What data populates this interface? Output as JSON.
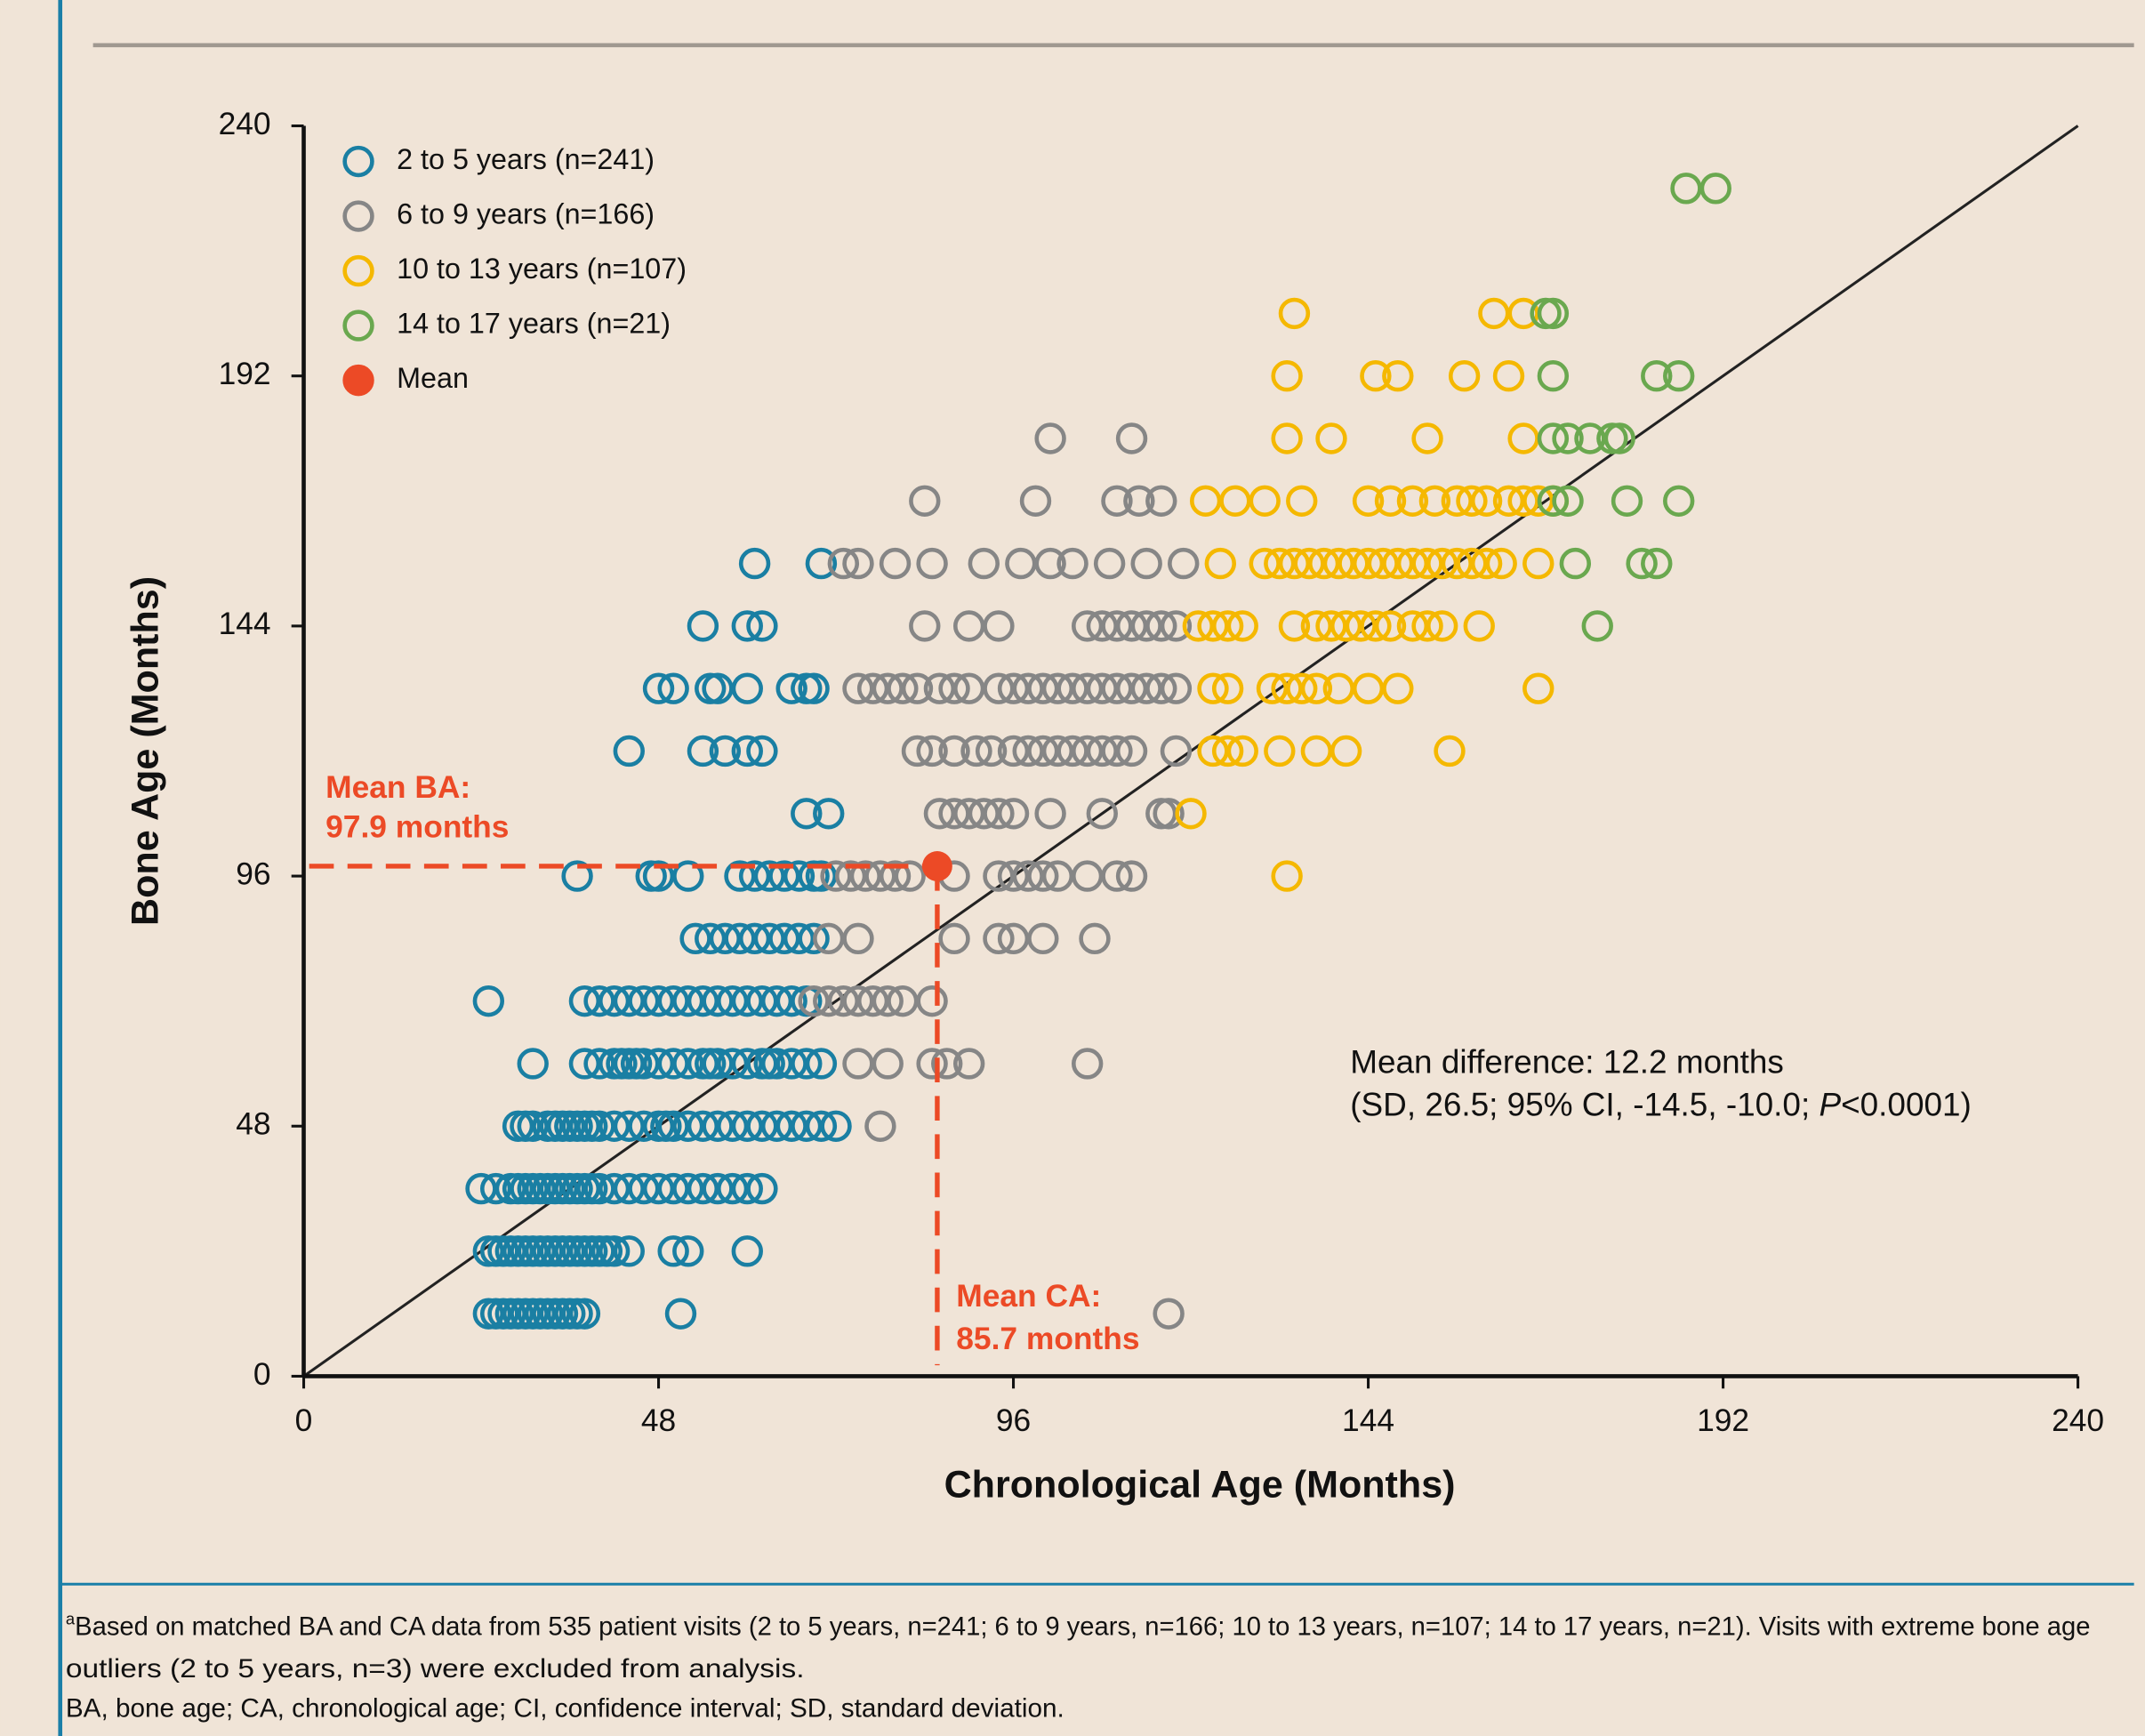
{
  "chart_data": {
    "type": "scatter",
    "xlabel": "Chronological Age (Months)",
    "ylabel": "Bone Age (Months)",
    "xlim": [
      0,
      240
    ],
    "ylim": [
      0,
      240
    ],
    "xticks": [
      0,
      48,
      96,
      144,
      192,
      240
    ],
    "yticks": [
      0,
      48,
      96,
      144,
      192,
      240
    ],
    "legend": "upper left",
    "series": [
      {
        "name": "2 to 5 years (n=241)",
        "color": "#1a7fa3",
        "x": [
          25,
          26,
          27,
          28,
          29,
          30,
          31,
          32,
          33,
          34,
          35,
          36,
          37,
          38,
          51,
          25,
          26,
          27,
          28,
          29,
          30,
          31,
          32,
          33,
          34,
          35,
          36,
          37,
          38,
          39,
          40,
          41,
          42,
          44,
          50,
          52,
          60,
          24,
          26,
          28,
          29,
          30,
          31,
          32,
          33,
          34,
          35,
          36,
          37,
          38,
          39,
          40,
          42,
          44,
          46,
          48,
          50,
          52,
          54,
          56,
          58,
          60,
          62,
          29,
          30,
          31,
          33,
          34,
          35,
          36,
          37,
          38,
          39,
          40,
          42,
          44,
          46,
          48,
          49,
          50,
          52,
          54,
          56,
          58,
          60,
          62,
          64,
          66,
          68,
          70,
          72,
          31,
          38,
          40,
          42,
          43,
          44,
          45,
          46,
          48,
          50,
          52,
          54,
          55,
          56,
          58,
          60,
          62,
          63,
          64,
          66,
          68,
          70,
          25,
          38,
          40,
          42,
          44,
          46,
          48,
          50,
          52,
          54,
          56,
          58,
          60,
          62,
          64,
          66,
          68,
          53,
          55,
          57,
          59,
          61,
          63,
          65,
          67,
          69,
          37,
          47,
          48,
          52,
          59,
          61,
          63,
          65,
          67,
          69,
          70,
          68,
          71,
          44,
          54,
          57,
          60,
          62,
          48,
          50,
          55,
          56,
          60,
          66,
          68,
          69,
          54,
          60,
          62,
          61,
          70
        ],
        "y": [
          12,
          12,
          12,
          12,
          12,
          12,
          12,
          12,
          12,
          12,
          12,
          12,
          12,
          12,
          12,
          24,
          24,
          24,
          24,
          24,
          24,
          24,
          24,
          24,
          24,
          24,
          24,
          24,
          24,
          24,
          24,
          24,
          24,
          24,
          24,
          24,
          24,
          36,
          36,
          36,
          36,
          36,
          36,
          36,
          36,
          36,
          36,
          36,
          36,
          36,
          36,
          36,
          36,
          36,
          36,
          36,
          36,
          36,
          36,
          36,
          36,
          36,
          36,
          48,
          48,
          48,
          48,
          48,
          48,
          48,
          48,
          48,
          48,
          48,
          48,
          48,
          48,
          48,
          48,
          48,
          48,
          48,
          48,
          48,
          48,
          48,
          48,
          48,
          48,
          48,
          48,
          60,
          60,
          60,
          60,
          60,
          60,
          60,
          60,
          60,
          60,
          60,
          60,
          60,
          60,
          60,
          60,
          60,
          60,
          60,
          60,
          60,
          60,
          72,
          72,
          72,
          72,
          72,
          72,
          72,
          72,
          72,
          72,
          72,
          72,
          72,
          72,
          72,
          72,
          72,
          84,
          84,
          84,
          84,
          84,
          84,
          84,
          84,
          84,
          96,
          96,
          96,
          96,
          96,
          96,
          96,
          96,
          96,
          96,
          96,
          108,
          108,
          120,
          120,
          120,
          120,
          120,
          132,
          132,
          132,
          132,
          132,
          132,
          132,
          132,
          144,
          144,
          144,
          156,
          156
        ]
      },
      {
        "name": "6 to 9 years (n=166)",
        "color": "#868686",
        "x": [
          117,
          78,
          75,
          79,
          85,
          87,
          90,
          106,
          69,
          71,
          73,
          75,
          77,
          79,
          81,
          85,
          71,
          75,
          88,
          94,
          96,
          100,
          107,
          72,
          74,
          76,
          78,
          80,
          82,
          88,
          94,
          96,
          98,
          100,
          102,
          106,
          110,
          112,
          86,
          88,
          90,
          92,
          94,
          96,
          101,
          108,
          116,
          117,
          83,
          85,
          88,
          91,
          93,
          96,
          98,
          100,
          102,
          104,
          106,
          108,
          110,
          112,
          118,
          75,
          77,
          79,
          81,
          83,
          86,
          88,
          90,
          94,
          96,
          98,
          100,
          102,
          104,
          106,
          108,
          110,
          112,
          114,
          116,
          118,
          84,
          90,
          94,
          106,
          108,
          110,
          112,
          114,
          116,
          118,
          73,
          75,
          80,
          85,
          92,
          97,
          101,
          104,
          109,
          114,
          119,
          84,
          99,
          110,
          113,
          116,
          101,
          112
        ],
        "y": [
          12,
          48,
          60,
          60,
          60,
          60,
          60,
          60,
          72,
          72,
          72,
          72,
          72,
          72,
          72,
          72,
          84,
          84,
          84,
          84,
          84,
          84,
          84,
          96,
          96,
          96,
          96,
          96,
          96,
          96,
          96,
          96,
          96,
          96,
          96,
          96,
          96,
          96,
          108,
          108,
          108,
          108,
          108,
          108,
          108,
          108,
          108,
          108,
          120,
          120,
          120,
          120,
          120,
          120,
          120,
          120,
          120,
          120,
          120,
          120,
          120,
          120,
          120,
          132,
          132,
          132,
          132,
          132,
          132,
          132,
          132,
          132,
          132,
          132,
          132,
          132,
          132,
          132,
          132,
          132,
          132,
          132,
          132,
          132,
          144,
          144,
          144,
          144,
          144,
          144,
          144,
          144,
          144,
          144,
          156,
          156,
          156,
          156,
          156,
          156,
          156,
          156,
          156,
          156,
          156,
          168,
          168,
          168,
          168,
          168,
          180,
          180
        ]
      },
      {
        "name": "10 to 13 years (n=107)",
        "color": "#f5b800",
        "x": [
          133,
          120,
          123,
          125,
          127,
          132,
          137,
          141,
          155,
          123,
          125,
          131,
          133,
          135,
          137,
          140,
          144,
          148,
          167,
          121,
          123,
          125,
          127,
          134,
          137,
          139,
          141,
          143,
          145,
          147,
          150,
          152,
          154,
          159,
          124,
          130,
          132,
          134,
          136,
          138,
          140,
          142,
          144,
          146,
          148,
          150,
          152,
          154,
          156,
          158,
          160,
          162,
          167,
          122,
          126,
          130,
          135,
          144,
          147,
          150,
          153,
          156,
          158,
          160,
          163,
          165,
          167,
          169,
          133,
          139,
          152,
          165,
          133,
          145,
          148,
          157,
          163,
          134,
          161,
          165
        ],
        "y": [
          96,
          108,
          120,
          120,
          120,
          120,
          120,
          120,
          120,
          132,
          132,
          132,
          132,
          132,
          132,
          132,
          132,
          132,
          132,
          144,
          144,
          144,
          144,
          144,
          144,
          144,
          144,
          144,
          144,
          144,
          144,
          144,
          144,
          144,
          156,
          156,
          156,
          156,
          156,
          156,
          156,
          156,
          156,
          156,
          156,
          156,
          156,
          156,
          156,
          156,
          156,
          156,
          156,
          168,
          168,
          168,
          168,
          168,
          168,
          168,
          168,
          168,
          168,
          168,
          168,
          168,
          168,
          168,
          180,
          180,
          180,
          180,
          192,
          192,
          192,
          192,
          192,
          204,
          204,
          204
        ]
      },
      {
        "name": "14 to 17 years (n=21)",
        "color": "#6aa84f",
        "x": [
          175,
          172,
          181,
          183,
          169,
          171,
          179,
          186,
          169,
          171,
          174,
          177,
          178,
          169,
          183,
          186,
          168,
          169,
          187,
          191
        ],
        "y": [
          144,
          156,
          156,
          156,
          168,
          168,
          168,
          168,
          180,
          180,
          180,
          180,
          180,
          192,
          192,
          192,
          204,
          204,
          228,
          228
        ]
      },
      {
        "name": "Mean",
        "color": "#ec4a26",
        "filled": true,
        "x": [
          85.7
        ],
        "y": [
          97.9
        ]
      }
    ],
    "annotations": {
      "mean_ba": [
        "Mean BA:",
        "97.9 months"
      ],
      "mean_ca": [
        "Mean CA:",
        "85.7 months"
      ],
      "mean_difference": [
        "Mean difference: 12.2 months",
        "(SD, 26.5; 95% CI, -14.5, -10.0; ",
        "P",
        "<0.0001)"
      ]
    },
    "footnote": [
      "a",
      "Based on matched BA and CA data from 535 patient visits (2 to 5 years, n=241; 6 to 9 years, n=166; 10 to 13 years, n=107; 14 to 17 years, n=21). Visits with extreme bone age",
      "outliers (2 to 5 years, n=3) were excluded from analysis.",
      "BA, bone age; CA, chronological age; CI, confidence interval; SD, standard deviation."
    ]
  }
}
